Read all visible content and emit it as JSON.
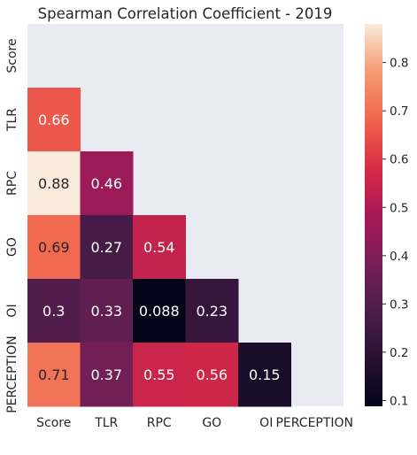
{
  "chart_data": {
    "type": "heatmap",
    "title": "Spearman Correlation Coefficient - 2019",
    "row_labels": [
      "Score",
      "TLR",
      "RPC",
      "GO",
      "OI",
      "PERCEPTION"
    ],
    "col_labels": [
      "Score",
      "TLR",
      "RPC",
      "GO",
      "OI",
      "PERCEPTION"
    ],
    "mask": "upper-triangle-including-diagonal",
    "cells": [
      {
        "row": "TLR",
        "col": "Score",
        "value": 0.66,
        "label": "0.66"
      },
      {
        "row": "RPC",
        "col": "Score",
        "value": 0.88,
        "label": "0.88"
      },
      {
        "row": "RPC",
        "col": "TLR",
        "value": 0.46,
        "label": "0.46"
      },
      {
        "row": "GO",
        "col": "Score",
        "value": 0.69,
        "label": "0.69"
      },
      {
        "row": "GO",
        "col": "TLR",
        "value": 0.27,
        "label": "0.27"
      },
      {
        "row": "GO",
        "col": "RPC",
        "value": 0.54,
        "label": "0.54"
      },
      {
        "row": "OI",
        "col": "Score",
        "value": 0.3,
        "label": "0.3"
      },
      {
        "row": "OI",
        "col": "TLR",
        "value": 0.33,
        "label": "0.33"
      },
      {
        "row": "OI",
        "col": "RPC",
        "value": 0.088,
        "label": "0.088"
      },
      {
        "row": "OI",
        "col": "GO",
        "value": 0.23,
        "label": "0.23"
      },
      {
        "row": "PERCEPTION",
        "col": "Score",
        "value": 0.71,
        "label": "0.71"
      },
      {
        "row": "PERCEPTION",
        "col": "TLR",
        "value": 0.37,
        "label": "0.37"
      },
      {
        "row": "PERCEPTION",
        "col": "RPC",
        "value": 0.55,
        "label": "0.55"
      },
      {
        "row": "PERCEPTION",
        "col": "GO",
        "value": 0.56,
        "label": "0.56"
      },
      {
        "row": "PERCEPTION",
        "col": "OI",
        "value": 0.15,
        "label": "0.15"
      }
    ],
    "colorbar": {
      "colormap": "rocket",
      "min": 0.088,
      "max": 0.88,
      "ticks": [
        {
          "value": 0.1,
          "label": "0.1"
        },
        {
          "value": 0.2,
          "label": "0.2"
        },
        {
          "value": 0.3,
          "label": "0.3"
        },
        {
          "value": 0.4,
          "label": "0.4"
        },
        {
          "value": 0.5,
          "label": "0.5"
        },
        {
          "value": 0.6,
          "label": "0.6"
        },
        {
          "value": 0.7,
          "label": "0.7"
        },
        {
          "value": 0.8,
          "label": "0.8"
        }
      ]
    },
    "background_color": "#eaeaf2",
    "grid": false
  }
}
